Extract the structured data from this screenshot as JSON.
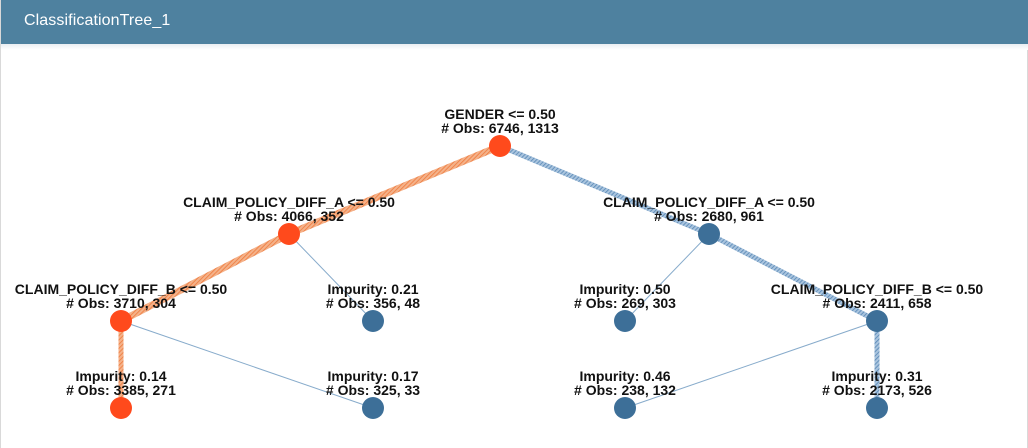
{
  "window": {
    "title": "ClassificationTree_1"
  },
  "colors": {
    "header": "#4e819f",
    "orange": "#ff4a1c",
    "blue": "#3d6f98",
    "orange_link": "#ef8a4e",
    "blue_link": "#5f8fba"
  },
  "nodes": [
    {
      "id": "root",
      "color": "orange",
      "line1": "GENDER <= 0.50",
      "line2": "# Obs: 6746, 1313"
    },
    {
      "id": "n_left",
      "color": "orange",
      "line1": "CLAIM_POLICY_DIFF_A <= 0.50",
      "line2": "# Obs: 4066, 352"
    },
    {
      "id": "n_right",
      "color": "blue",
      "line1": "CLAIM_POLICY_DIFF_A <= 0.50",
      "line2": "# Obs: 2680, 961"
    },
    {
      "id": "n_ll",
      "color": "orange",
      "line1": "CLAIM_POLICY_DIFF_B <= 0.50",
      "line2": "# Obs: 3710, 304"
    },
    {
      "id": "n_lr",
      "color": "blue",
      "line1": "Impurity: 0.21",
      "line2": "# Obs: 356, 48"
    },
    {
      "id": "n_rl",
      "color": "blue",
      "line1": "Impurity: 0.50",
      "line2": "# Obs: 269, 303"
    },
    {
      "id": "n_rr",
      "color": "blue",
      "line1": "CLAIM_POLICY_DIFF_B <= 0.50",
      "line2": "# Obs: 2411, 658"
    },
    {
      "id": "n_lll",
      "color": "orange",
      "line1": "Impurity: 0.14",
      "line2": "# Obs: 3385, 271"
    },
    {
      "id": "n_llr",
      "color": "blue",
      "line1": "Impurity: 0.17",
      "line2": "# Obs: 325, 33"
    },
    {
      "id": "n_rrl",
      "color": "blue",
      "line1": "Impurity: 0.46",
      "line2": "# Obs: 238, 132"
    },
    {
      "id": "n_rrr",
      "color": "blue",
      "line1": "Impurity: 0.31",
      "line2": "# Obs: 2173, 526"
    }
  ],
  "edges": [
    {
      "from": "root",
      "to": "n_left",
      "color": "orange_link",
      "weight": "heavy"
    },
    {
      "from": "root",
      "to": "n_right",
      "color": "blue_link",
      "weight": "medium"
    },
    {
      "from": "n_left",
      "to": "n_ll",
      "color": "orange_link",
      "weight": "heavy"
    },
    {
      "from": "n_left",
      "to": "n_lr",
      "color": "blue_link",
      "weight": "thin"
    },
    {
      "from": "n_right",
      "to": "n_rl",
      "color": "blue_link",
      "weight": "thin"
    },
    {
      "from": "n_right",
      "to": "n_rr",
      "color": "blue_link",
      "weight": "medium"
    },
    {
      "from": "n_ll",
      "to": "n_lll",
      "color": "orange_link",
      "weight": "medium"
    },
    {
      "from": "n_ll",
      "to": "n_llr",
      "color": "blue_link",
      "weight": "thin"
    },
    {
      "from": "n_rr",
      "to": "n_rrl",
      "color": "blue_link",
      "weight": "thin"
    },
    {
      "from": "n_rr",
      "to": "n_rrr",
      "color": "blue_link",
      "weight": "medium"
    }
  ]
}
